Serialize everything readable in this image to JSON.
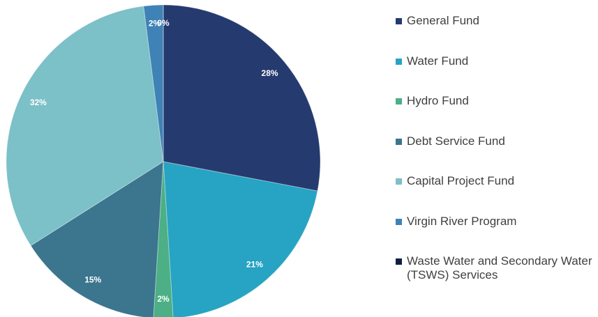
{
  "chart_data": {
    "type": "pie",
    "categories": [
      "General Fund",
      "Water Fund",
      "Hydro Fund",
      "Debt Service Fund",
      "Capital Project Fund",
      "Virgin River Program",
      "Waste Water and Secondary Water (TSWS) Services"
    ],
    "values": [
      28,
      21,
      2,
      15,
      32,
      2,
      0
    ],
    "value_labels": [
      "28%",
      "21%",
      "2%",
      "15%",
      "32%",
      "2%",
      "0%"
    ],
    "colors": [
      "#253a6e",
      "#27a3c3",
      "#4caf86",
      "#3b758e",
      "#7cc0c8",
      "#3f82b5",
      "#0f1f40"
    ],
    "legend": "right"
  }
}
